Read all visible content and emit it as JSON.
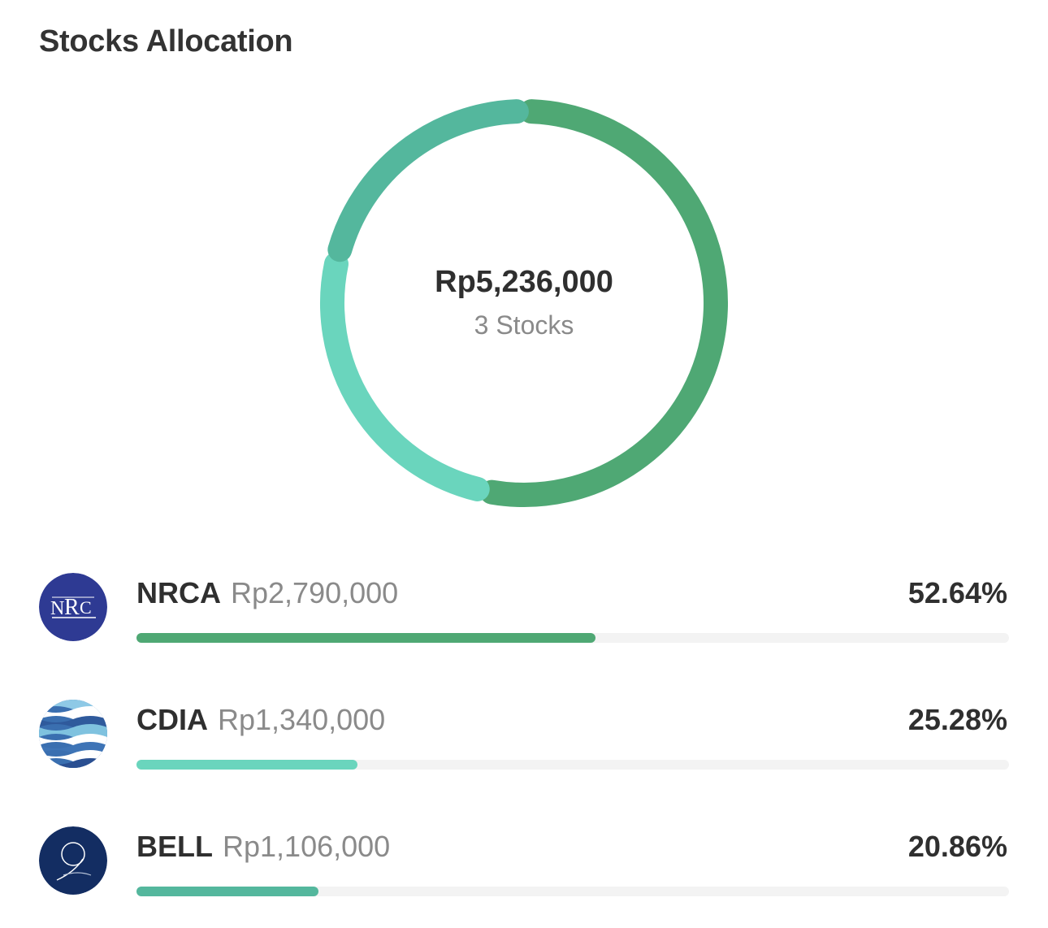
{
  "title": "Stocks Allocation",
  "summary": {
    "total": "Rp5,236,000",
    "count_label": "3 Stocks"
  },
  "chart_data": {
    "type": "pie",
    "categories": [
      "NRCA",
      "CDIA",
      "BELL"
    ],
    "values": [
      52.64,
      25.28,
      20.86
    ],
    "colors": [
      "#4fa874",
      "#6ad5bd",
      "#54b79d"
    ],
    "title": "Stocks Allocation"
  },
  "stocks": [
    {
      "ticker": "NRCA",
      "value": "Rp2,790,000",
      "percent_label": "52.64%",
      "percent": 52.64,
      "color": "#4fa874",
      "logo": "nrca-logo"
    },
    {
      "ticker": "CDIA",
      "value": "Rp1,340,000",
      "percent_label": "25.28%",
      "percent": 25.28,
      "color": "#6ad5bd",
      "logo": "cdia-logo"
    },
    {
      "ticker": "BELL",
      "value": "Rp1,106,000",
      "percent_label": "20.86%",
      "percent": 20.86,
      "color": "#54b79d",
      "logo": "bell-logo"
    }
  ]
}
